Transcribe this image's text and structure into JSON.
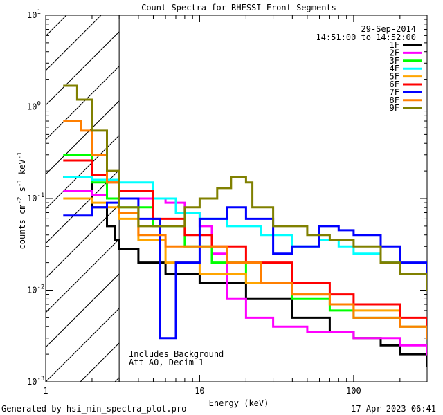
{
  "chart_data": {
    "type": "line",
    "subtype": "step",
    "title": "Count Spectra for RHESSI Front Segments",
    "xlabel": "Energy (keV)",
    "ylabel_parts": [
      "counts cm",
      "-2",
      " s",
      "-1",
      " keV",
      "-1"
    ],
    "xscale": "log",
    "yscale": "log",
    "xlim": [
      1,
      300
    ],
    "ylim": [
      0.001,
      10
    ],
    "x_ticks": [
      {
        "value": 1,
        "label": "1"
      },
      {
        "value": 10,
        "label": "10"
      },
      {
        "value": 100,
        "label": "100"
      }
    ],
    "y_ticks": [
      {
        "value": 0.001,
        "base": "10",
        "exp": "-3"
      },
      {
        "value": 0.01,
        "base": "10",
        "exp": "-2"
      },
      {
        "value": 0.1,
        "base": "10",
        "exp": "-1"
      },
      {
        "value": 1,
        "base": "10",
        "exp": "0"
      },
      {
        "value": 10,
        "base": "10",
        "exp": "1"
      }
    ],
    "date_label": "29-Sep-2014",
    "time_range_label": "14:51:00 to 14:52:00",
    "shaded_region": {
      "x_range": [
        1,
        3
      ],
      "pattern": "diagonal hatch"
    },
    "annotations": [
      "Includes Background",
      "Att A0, Decim 1"
    ],
    "footer_left": "Generated by hsi_min_spectra_plot.pro",
    "footer_right": "17-Apr-2023 06:41",
    "series": [
      {
        "name": "1F",
        "color": "#000000",
        "points": [
          [
            1.3,
            0.17
          ],
          [
            2,
            0.08
          ],
          [
            2.5,
            0.05
          ],
          [
            2.8,
            0.035
          ],
          [
            3,
            0.028
          ],
          [
            4,
            0.02
          ],
          [
            6,
            0.015
          ],
          [
            10,
            0.012
          ],
          [
            20,
            0.008
          ],
          [
            40,
            0.005
          ],
          [
            70,
            0.0035
          ],
          [
            100,
            0.003
          ],
          [
            150,
            0.0025
          ],
          [
            200,
            0.002
          ],
          [
            300,
            0.0015
          ]
        ]
      },
      {
        "name": "2F",
        "color": "#ff00ff",
        "points": [
          [
            1.3,
            0.12
          ],
          [
            2,
            0.11
          ],
          [
            2.5,
            0.1
          ],
          [
            3,
            0.1
          ],
          [
            4,
            0.1
          ],
          [
            6,
            0.09
          ],
          [
            8,
            0.07
          ],
          [
            10,
            0.05
          ],
          [
            12,
            0.025
          ],
          [
            15,
            0.008
          ],
          [
            20,
            0.005
          ],
          [
            30,
            0.004
          ],
          [
            50,
            0.0035
          ],
          [
            100,
            0.003
          ],
          [
            200,
            0.0025
          ],
          [
            300,
            0.002
          ]
        ]
      },
      {
        "name": "3F",
        "color": "#00ff00",
        "points": [
          [
            1.3,
            0.3
          ],
          [
            2,
            0.15
          ],
          [
            2.5,
            0.1
          ],
          [
            3,
            0.08
          ],
          [
            5,
            0.05
          ],
          [
            8,
            0.03
          ],
          [
            12,
            0.02
          ],
          [
            20,
            0.012
          ],
          [
            40,
            0.008
          ],
          [
            70,
            0.006
          ],
          [
            100,
            0.005
          ],
          [
            200,
            0.004
          ],
          [
            300,
            0.003
          ]
        ]
      },
      {
        "name": "4F",
        "color": "#00ffff",
        "points": [
          [
            1.3,
            0.17
          ],
          [
            2,
            0.16
          ],
          [
            3,
            0.15
          ],
          [
            5,
            0.1
          ],
          [
            7,
            0.07
          ],
          [
            10,
            0.06
          ],
          [
            15,
            0.05
          ],
          [
            25,
            0.04
          ],
          [
            40,
            0.03
          ],
          [
            60,
            0.035
          ],
          [
            80,
            0.03
          ],
          [
            100,
            0.025
          ],
          [
            150,
            0.02
          ],
          [
            200,
            0.015
          ],
          [
            300,
            0.01
          ]
        ]
      },
      {
        "name": "5F",
        "color": "#ffa500",
        "points": [
          [
            1.3,
            0.1
          ],
          [
            2,
            0.09
          ],
          [
            2.5,
            0.08
          ],
          [
            3,
            0.06
          ],
          [
            4,
            0.035
          ],
          [
            6,
            0.02
          ],
          [
            10,
            0.015
          ],
          [
            20,
            0.012
          ],
          [
            40,
            0.009
          ],
          [
            70,
            0.007
          ],
          [
            100,
            0.006
          ],
          [
            200,
            0.004
          ],
          [
            300,
            0.003
          ]
        ]
      },
      {
        "name": "6F",
        "color": "#ff0000",
        "points": [
          [
            1.3,
            0.26
          ],
          [
            2,
            0.18
          ],
          [
            2.5,
            0.15
          ],
          [
            3,
            0.12
          ],
          [
            5,
            0.06
          ],
          [
            8,
            0.04
          ],
          [
            12,
            0.03
          ],
          [
            20,
            0.02
          ],
          [
            40,
            0.012
          ],
          [
            70,
            0.009
          ],
          [
            100,
            0.007
          ],
          [
            200,
            0.005
          ],
          [
            300,
            0.004
          ]
        ]
      },
      {
        "name": "7F",
        "color": "#0000ff",
        "points": [
          [
            1.3,
            0.065
          ],
          [
            2,
            0.08
          ],
          [
            2.5,
            0.09
          ],
          [
            3,
            0.1
          ],
          [
            4,
            0.06
          ],
          [
            5.5,
            0.003
          ],
          [
            7,
            0.02
          ],
          [
            10,
            0.06
          ],
          [
            15,
            0.08
          ],
          [
            20,
            0.06
          ],
          [
            30,
            0.025
          ],
          [
            40,
            0.03
          ],
          [
            60,
            0.05
          ],
          [
            80,
            0.045
          ],
          [
            100,
            0.04
          ],
          [
            150,
            0.03
          ],
          [
            200,
            0.02
          ],
          [
            300,
            0.01
          ]
        ]
      },
      {
        "name": "8F",
        "color": "#ff7f00",
        "points": [
          [
            1.3,
            0.7
          ],
          [
            1.7,
            0.55
          ],
          [
            2,
            0.3
          ],
          [
            2.5,
            0.15
          ],
          [
            3,
            0.07
          ],
          [
            4,
            0.04
          ],
          [
            6,
            0.03
          ],
          [
            10,
            0.03
          ],
          [
            15,
            0.02
          ],
          [
            25,
            0.012
          ],
          [
            40,
            0.009
          ],
          [
            70,
            0.007
          ],
          [
            100,
            0.005
          ],
          [
            200,
            0.004
          ],
          [
            300,
            0.003
          ]
        ]
      },
      {
        "name": "9F",
        "color": "#808000",
        "points": [
          [
            1.3,
            1.7
          ],
          [
            1.6,
            1.2
          ],
          [
            2,
            0.55
          ],
          [
            2.5,
            0.2
          ],
          [
            3,
            0.08
          ],
          [
            4,
            0.05
          ],
          [
            6,
            0.05
          ],
          [
            8,
            0.08
          ],
          [
            10,
            0.1
          ],
          [
            13,
            0.13
          ],
          [
            16,
            0.17
          ],
          [
            20,
            0.15
          ],
          [
            22,
            0.08
          ],
          [
            30,
            0.05
          ],
          [
            50,
            0.04
          ],
          [
            70,
            0.035
          ],
          [
            100,
            0.03
          ],
          [
            150,
            0.02
          ],
          [
            200,
            0.015
          ],
          [
            300,
            0.01
          ]
        ]
      }
    ]
  }
}
